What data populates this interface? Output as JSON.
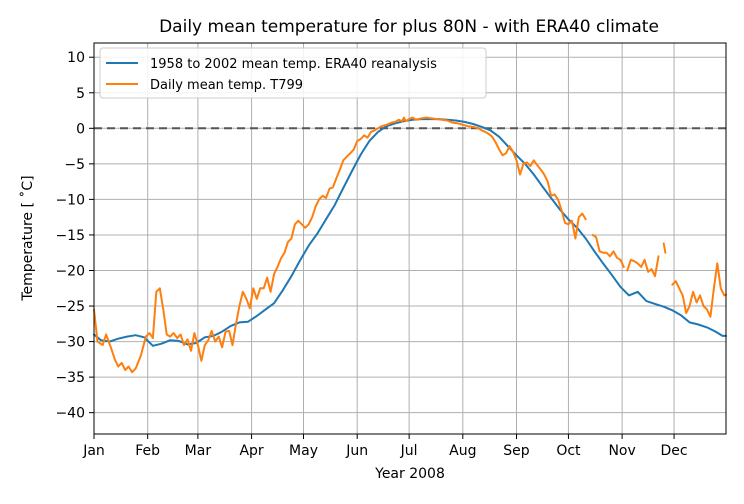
{
  "chart_data": {
    "type": "line",
    "title": "Daily mean temperature for plus 80N - with ERA40 climate",
    "xlabel": "Year 2008",
    "ylabel": "Temperature [ ˚C]",
    "x_ticks": [
      "Jan",
      "Feb",
      "Mar",
      "Apr",
      "May",
      "Jun",
      "Jul",
      "Aug",
      "Sep",
      "Oct",
      "Nov",
      "Dec"
    ],
    "x_tick_days": [
      1,
      32,
      61,
      92,
      122,
      153,
      183,
      214,
      245,
      275,
      306,
      336
    ],
    "xlim": [
      1,
      366
    ],
    "ylim": [
      -43,
      12
    ],
    "y_ticks": [
      10,
      5,
      0,
      -5,
      -10,
      -15,
      -20,
      -25,
      -30,
      -35,
      -40
    ],
    "y_tick_labels": [
      "10",
      "5",
      "0",
      "−5",
      "−10",
      "−15",
      "−20",
      "−25",
      "−30",
      "−35",
      "−40"
    ],
    "grid": true,
    "legend_position": "top-left",
    "reference_line": {
      "y": 0,
      "style": "dashed",
      "color": "#555555"
    },
    "series": [
      {
        "name": "1958 to 2002 mean temp. ERA40 reanalysis",
        "color": "#1f77b4",
        "points": [
          [
            1,
            -29.0
          ],
          [
            5,
            -29.8
          ],
          [
            10,
            -30.0
          ],
          [
            15,
            -29.6
          ],
          [
            20,
            -29.3
          ],
          [
            25,
            -29.1
          ],
          [
            30,
            -29.4
          ],
          [
            35,
            -30.6
          ],
          [
            40,
            -30.3
          ],
          [
            45,
            -29.8
          ],
          [
            50,
            -29.9
          ],
          [
            55,
            -30.4
          ],
          [
            60,
            -30.2
          ],
          [
            65,
            -29.4
          ],
          [
            70,
            -29.2
          ],
          [
            75,
            -28.6
          ],
          [
            80,
            -27.8
          ],
          [
            85,
            -27.3
          ],
          [
            90,
            -27.2
          ],
          [
            95,
            -26.4
          ],
          [
            100,
            -25.5
          ],
          [
            105,
            -24.6
          ],
          [
            110,
            -22.8
          ],
          [
            115,
            -20.8
          ],
          [
            120,
            -18.6
          ],
          [
            125,
            -16.5
          ],
          [
            130,
            -14.8
          ],
          [
            135,
            -12.8
          ],
          [
            140,
            -10.8
          ],
          [
            145,
            -8.4
          ],
          [
            150,
            -6.0
          ],
          [
            155,
            -3.7
          ],
          [
            160,
            -1.8
          ],
          [
            165,
            -0.5
          ],
          [
            170,
            0.3
          ],
          [
            175,
            0.7
          ],
          [
            180,
            1.0
          ],
          [
            185,
            1.2
          ],
          [
            190,
            1.3
          ],
          [
            195,
            1.3
          ],
          [
            200,
            1.3
          ],
          [
            205,
            1.2
          ],
          [
            210,
            1.1
          ],
          [
            215,
            0.9
          ],
          [
            220,
            0.6
          ],
          [
            225,
            0.2
          ],
          [
            230,
            -0.3
          ],
          [
            235,
            -1.2
          ],
          [
            240,
            -2.5
          ],
          [
            245,
            -3.8
          ],
          [
            250,
            -5.0
          ],
          [
            255,
            -6.5
          ],
          [
            260,
            -8.2
          ],
          [
            265,
            -9.8
          ],
          [
            270,
            -11.4
          ],
          [
            275,
            -12.8
          ],
          [
            280,
            -14.0
          ],
          [
            285,
            -15.5
          ],
          [
            290,
            -17.3
          ],
          [
            295,
            -19.0
          ],
          [
            300,
            -20.6
          ],
          [
            305,
            -22.3
          ],
          [
            310,
            -23.5
          ],
          [
            315,
            -23.0
          ],
          [
            320,
            -24.3
          ],
          [
            325,
            -24.7
          ],
          [
            330,
            -25.1
          ],
          [
            335,
            -25.6
          ],
          [
            340,
            -26.3
          ],
          [
            345,
            -27.3
          ],
          [
            350,
            -27.6
          ],
          [
            355,
            -28.0
          ],
          [
            360,
            -28.6
          ],
          [
            364,
            -29.2
          ],
          [
            366,
            -29.2
          ]
        ]
      },
      {
        "name": "Daily mean temp. T799",
        "color": "#ff7f0e",
        "points": [
          [
            1,
            -25.5
          ],
          [
            3,
            -30.0
          ],
          [
            6,
            -30.5
          ],
          [
            8,
            -29.0
          ],
          [
            11,
            -31.0
          ],
          [
            13,
            -32.5
          ],
          [
            15,
            -33.5
          ],
          [
            17,
            -33.0
          ],
          [
            19,
            -34.0
          ],
          [
            21,
            -33.5
          ],
          [
            23,
            -34.3
          ],
          [
            25,
            -33.8
          ],
          [
            28,
            -32.0
          ],
          [
            31,
            -29.3
          ],
          [
            33,
            -28.8
          ],
          [
            35,
            -29.5
          ],
          [
            37,
            -23.0
          ],
          [
            39,
            -22.5
          ],
          [
            41,
            -25.5
          ],
          [
            43,
            -29.0
          ],
          [
            45,
            -29.3
          ],
          [
            47,
            -28.8
          ],
          [
            49,
            -29.5
          ],
          [
            51,
            -29.0
          ],
          [
            53,
            -30.5
          ],
          [
            55,
            -29.7
          ],
          [
            57,
            -31.3
          ],
          [
            59,
            -28.8
          ],
          [
            61,
            -30.5
          ],
          [
            63,
            -32.7
          ],
          [
            65,
            -30.5
          ],
          [
            67,
            -29.8
          ],
          [
            69,
            -28.5
          ],
          [
            71,
            -30.0
          ],
          [
            73,
            -29.3
          ],
          [
            75,
            -30.8
          ],
          [
            77,
            -28.6
          ],
          [
            79,
            -28.5
          ],
          [
            81,
            -30.5
          ],
          [
            83,
            -27.5
          ],
          [
            85,
            -25.0
          ],
          [
            87,
            -23.0
          ],
          [
            89,
            -24.0
          ],
          [
            91,
            -25.3
          ],
          [
            93,
            -22.5
          ],
          [
            95,
            -24.0
          ],
          [
            97,
            -22.5
          ],
          [
            99,
            -22.5
          ],
          [
            101,
            -21.0
          ],
          [
            103,
            -23.0
          ],
          [
            105,
            -20.5
          ],
          [
            107,
            -19.5
          ],
          [
            109,
            -18.3
          ],
          [
            111,
            -17.5
          ],
          [
            113,
            -16.0
          ],
          [
            115,
            -15.5
          ],
          [
            117,
            -13.5
          ],
          [
            119,
            -13.0
          ],
          [
            121,
            -13.5
          ],
          [
            123,
            -14.0
          ],
          [
            125,
            -13.5
          ],
          [
            127,
            -12.5
          ],
          [
            129,
            -11.0
          ],
          [
            131,
            -10.0
          ],
          [
            133,
            -9.5
          ],
          [
            135,
            -9.8
          ],
          [
            137,
            -8.5
          ],
          [
            139,
            -8.3
          ],
          [
            141,
            -7.0
          ],
          [
            143,
            -5.8
          ],
          [
            145,
            -4.5
          ],
          [
            147,
            -4.0
          ],
          [
            149,
            -3.5
          ],
          [
            151,
            -3.0
          ],
          [
            153,
            -1.8
          ],
          [
            155,
            -1.5
          ],
          [
            157,
            -1.0
          ],
          [
            159,
            -1.3
          ],
          [
            161,
            -0.5
          ],
          [
            163,
            -0.3
          ],
          [
            165,
            0.0
          ],
          [
            167,
            0.3
          ],
          [
            170,
            0.5
          ],
          [
            173,
            0.8
          ],
          [
            175,
            0.9
          ],
          [
            177,
            1.2
          ],
          [
            179,
            1.0
          ],
          [
            180,
            1.5
          ],
          [
            181,
            1.0
          ],
          [
            183,
            1.3
          ],
          [
            185,
            1.5
          ],
          [
            187,
            1.2
          ],
          [
            190,
            1.4
          ],
          [
            193,
            1.5
          ],
          [
            196,
            1.4
          ],
          [
            199,
            1.3
          ],
          [
            202,
            1.2
          ],
          [
            205,
            1.1
          ],
          [
            208,
            0.8
          ],
          [
            211,
            0.7
          ],
          [
            214,
            0.5
          ],
          [
            217,
            0.3
          ],
          [
            220,
            0.2
          ],
          [
            223,
            0.0
          ],
          [
            225,
            -0.3
          ],
          [
            227,
            -0.5
          ],
          [
            229,
            -0.8
          ],
          [
            231,
            -1.2
          ],
          [
            233,
            -2.0
          ],
          [
            235,
            -3.0
          ],
          [
            237,
            -3.8
          ],
          [
            239,
            -3.5
          ],
          [
            241,
            -2.5
          ],
          [
            243,
            -3.3
          ],
          [
            245,
            -4.5
          ],
          [
            247,
            -6.5
          ],
          [
            249,
            -5.0
          ],
          [
            251,
            -4.8
          ],
          [
            253,
            -5.3
          ],
          [
            255,
            -4.5
          ],
          [
            257,
            -5.2
          ],
          [
            259,
            -5.8
          ],
          [
            261,
            -6.5
          ],
          [
            263,
            -7.5
          ],
          [
            265,
            -9.5
          ],
          [
            267,
            -9.3
          ],
          [
            269,
            -10.0
          ],
          [
            271,
            -11.5
          ],
          [
            273,
            -13.3
          ],
          [
            275,
            -13.5
          ],
          [
            277,
            -13.0
          ],
          [
            279,
            -15.5
          ],
          [
            281,
            -12.5
          ],
          [
            283,
            -12.0
          ],
          [
            285,
            -12.8
          ]
        ]
      },
      {
        "name": "",
        "color": "#ff7f0e",
        "points": [
          [
            289,
            -15.0
          ],
          [
            291,
            -15.3
          ],
          [
            293,
            -17.3
          ],
          [
            295,
            -17.5
          ],
          [
            297,
            -17.5
          ],
          [
            299,
            -18.0
          ],
          [
            301,
            -17.3
          ],
          [
            303,
            -18.2
          ],
          [
            305,
            -18.5
          ],
          [
            307,
            -19.5
          ]
        ]
      },
      {
        "name": "",
        "color": "#ff7f0e",
        "points": [
          [
            309,
            -20.0
          ],
          [
            311,
            -18.5
          ],
          [
            313,
            -18.7
          ],
          [
            315,
            -19.0
          ],
          [
            317,
            -19.5
          ],
          [
            319,
            -18.5
          ],
          [
            321,
            -20.2
          ],
          [
            323,
            -19.8
          ],
          [
            325,
            -20.8
          ],
          [
            327,
            -18.0
          ]
        ]
      },
      {
        "name": "",
        "color": "#ff7f0e",
        "points": [
          [
            330,
            -16.2
          ],
          [
            331,
            -17.5
          ]
        ]
      },
      {
        "name": "",
        "color": "#ff7f0e",
        "points": [
          [
            335,
            -22.0
          ],
          [
            337,
            -21.5
          ],
          [
            339,
            -22.5
          ],
          [
            341,
            -23.5
          ],
          [
            343,
            -26.0
          ],
          [
            345,
            -25.0
          ],
          [
            347,
            -23.0
          ],
          [
            349,
            -24.5
          ],
          [
            351,
            -23.5
          ],
          [
            353,
            -25.0
          ],
          [
            355,
            -25.5
          ],
          [
            357,
            -26.5
          ],
          [
            359,
            -22.5
          ],
          [
            361,
            -19.0
          ],
          [
            363,
            -22.5
          ],
          [
            365,
            -23.5
          ],
          [
            366,
            -23.4
          ]
        ]
      }
    ]
  }
}
